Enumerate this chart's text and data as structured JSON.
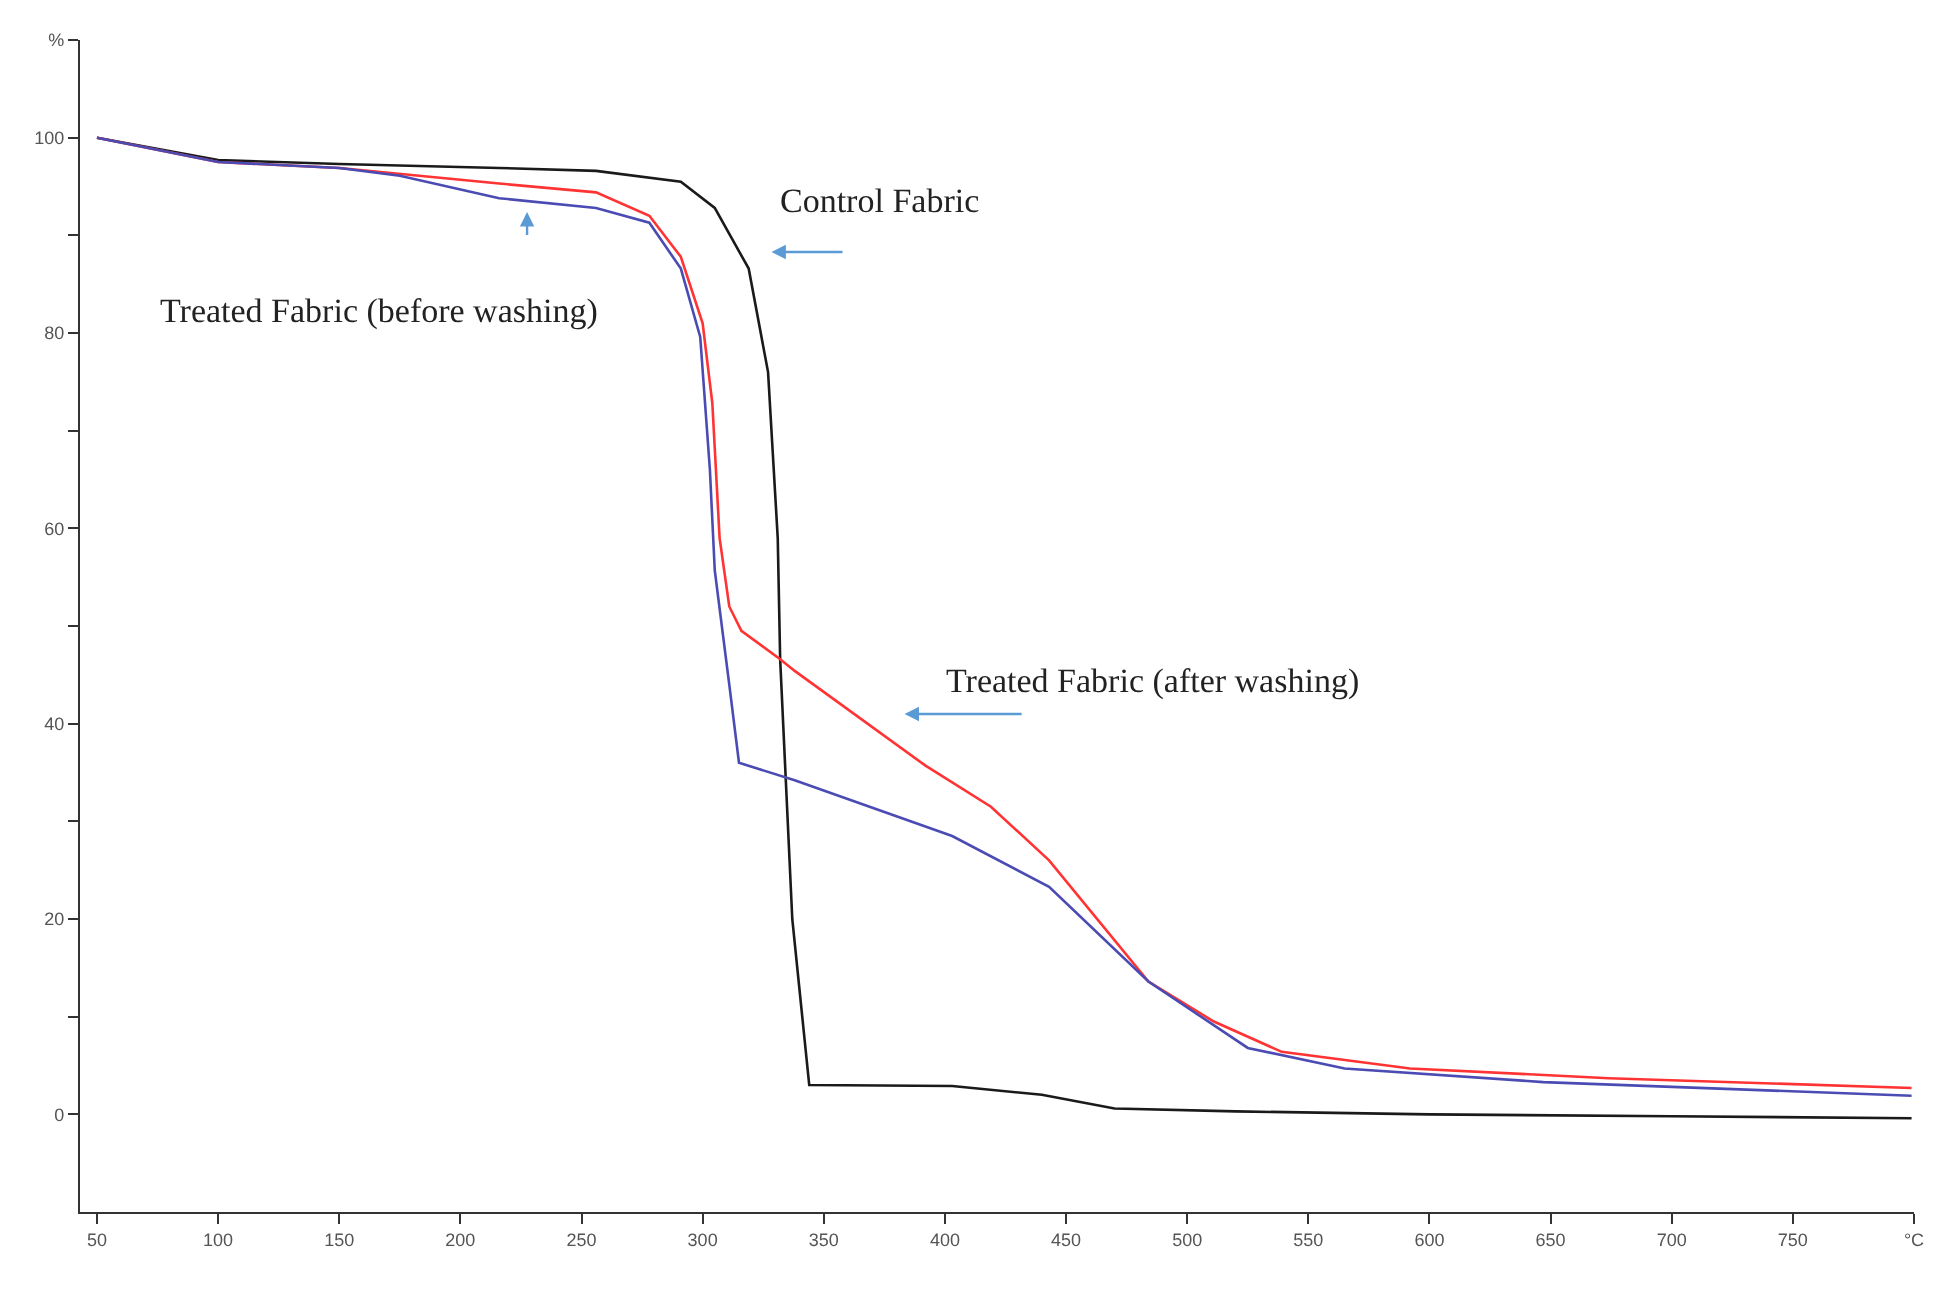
{
  "chart_data": {
    "type": "line",
    "xlim": [
      43,
      800
    ],
    "ylim": [
      -10,
      110
    ],
    "xticks": [
      50,
      100,
      150,
      200,
      250,
      300,
      350,
      400,
      450,
      500,
      550,
      600,
      650,
      700,
      750,
      {
        "value": 800,
        "label": "°C"
      }
    ],
    "yticks": [
      0,
      {
        "value": 10,
        "label": null
      },
      20,
      {
        "value": 30,
        "label": null
      },
      40,
      {
        "value": 50,
        "label": null
      },
      60,
      {
        "value": 70,
        "label": null
      },
      80,
      {
        "value": 90,
        "label": null
      },
      100,
      {
        "value": 110,
        "label": "%"
      }
    ],
    "marker": "none",
    "line_style": "solid",
    "series": [
      {
        "color": "#1a1a1a",
        "x": [
          50,
          100,
          150,
          216,
          256,
          291,
          305,
          319,
          327,
          331,
          332,
          337,
          344,
          403,
          440,
          470,
          520,
          600,
          700,
          799
        ],
        "values": [
          100,
          97.7,
          97.3,
          96.9,
          96.6,
          95.5,
          92.8,
          86.6,
          76,
          59,
          46.6,
          20,
          3,
          2.9,
          2,
          0.6,
          0.3,
          0,
          -0.2,
          -0.4
        ]
      },
      {
        "color": "#ff3333",
        "x": [
          50,
          100,
          150,
          216,
          256,
          278,
          291,
          300,
          304,
          307,
          311,
          316,
          332,
          338,
          392,
          419,
          443,
          484,
          511,
          539,
          592,
          674,
          799
        ],
        "values": [
          100,
          97.5,
          96.9,
          95.3,
          94.4,
          92,
          87.8,
          81,
          72.8,
          59,
          52,
          49.5,
          46.6,
          45.4,
          35.7,
          31.5,
          26,
          13.6,
          9.5,
          6.4,
          4.7,
          3.7,
          2.7
        ]
      },
      {
        "color": "#4b4bb4",
        "x": [
          50,
          100,
          150,
          175,
          216,
          256,
          278,
          291,
          299,
          303,
          305,
          311,
          315,
          338,
          403,
          443,
          484,
          525,
          565,
          647,
          799
        ],
        "values": [
          100,
          97.5,
          96.9,
          96.1,
          93.8,
          92.8,
          91.3,
          86.6,
          79.6,
          66,
          55.7,
          44,
          36,
          34.2,
          28.5,
          23.3,
          13.6,
          6.8,
          4.7,
          3.3,
          1.9
        ]
      }
    ],
    "annotations": [
      "Control Fabric",
      "Treated Fabric (before washing)",
      "Treated Fabric (after washing)"
    ]
  }
}
